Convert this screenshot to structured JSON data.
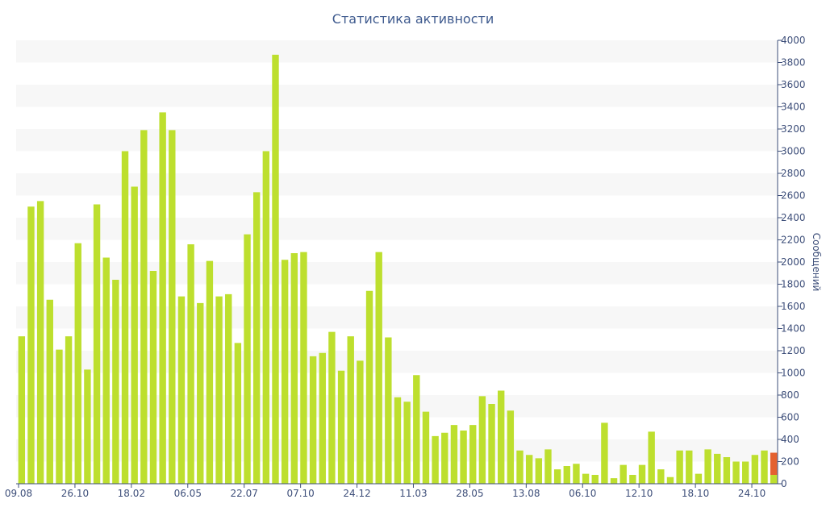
{
  "colors": {
    "bar": "#bddf2e",
    "bar_highlight": "#e4612f",
    "band": "#f7f7f7",
    "axis": "#3e4f7a",
    "title": "#3e5a8e"
  },
  "chart_data": {
    "type": "bar",
    "title": "Статистика активности",
    "xlabel": "",
    "ylabel": "Сообщений",
    "ylim": [
      0,
      4000
    ],
    "y_ticks": [
      0,
      200,
      400,
      600,
      800,
      1000,
      1200,
      1400,
      1600,
      1800,
      2000,
      2200,
      2400,
      2600,
      2800,
      3000,
      3200,
      3400,
      3600,
      3800,
      4000
    ],
    "y_axis_side": "right",
    "grid": "alternating horizontal bands",
    "x_tick_labels": [
      {
        "label": "09.08",
        "index": 0
      },
      {
        "label": "26.10",
        "index": 6
      },
      {
        "label": "18.02",
        "index": 12
      },
      {
        "label": "06.05",
        "index": 18
      },
      {
        "label": "22.07",
        "index": 24
      },
      {
        "label": "07.10",
        "index": 30
      },
      {
        "label": "24.12",
        "index": 36
      },
      {
        "label": "11.03",
        "index": 42
      },
      {
        "label": "28.05",
        "index": 48
      },
      {
        "label": "13.08",
        "index": 54
      },
      {
        "label": "06.10",
        "index": 60
      },
      {
        "label": "12.10",
        "index": 66
      },
      {
        "label": "18.10",
        "index": 72
      },
      {
        "label": "24.10",
        "index": 78
      }
    ],
    "series": [
      {
        "values": [
          1330,
          2500,
          2550,
          1660,
          1210,
          1330,
          2170,
          1030,
          2520,
          2040,
          1840,
          3000,
          2680,
          3190,
          1920,
          3350,
          3190,
          1690,
          2160,
          1630,
          2010,
          1690,
          1710,
          1270,
          2250,
          2630,
          3000,
          3870,
          2020,
          2080,
          2090,
          1150,
          1180,
          1370,
          1020,
          1330,
          1110,
          1740,
          2090,
          1320,
          780,
          740,
          980,
          650,
          430,
          460,
          530,
          480,
          530,
          790,
          720,
          840,
          660,
          300,
          260,
          230,
          310,
          130,
          160,
          180,
          90,
          80,
          550,
          50,
          170,
          80,
          170,
          470,
          130,
          60,
          300,
          300,
          90,
          310,
          270,
          240,
          200,
          200,
          260,
          300,
          80
        ]
      },
      {
        "name": "",
        "highlight": true,
        "stacked_on_last_bar": true,
        "values": [
          200
        ]
      }
    ]
  }
}
